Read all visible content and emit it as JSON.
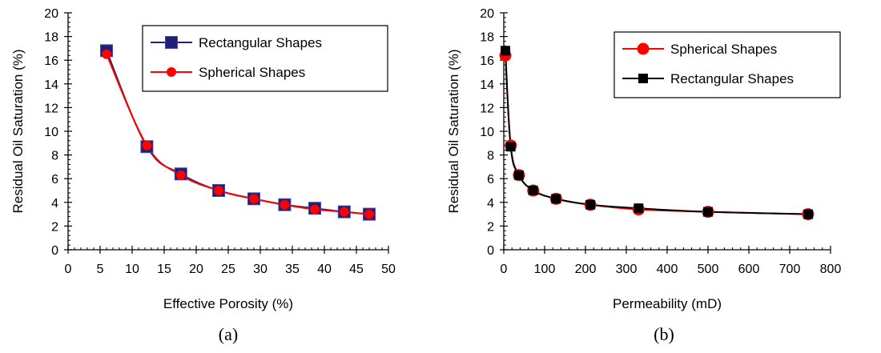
{
  "chart_data": [
    {
      "type": "line",
      "xlabel": "Effective Porosity (%)",
      "ylabel": "Residual Oil Saturation (%)",
      "xlim": [
        0,
        50
      ],
      "ylim": [
        0,
        20
      ],
      "xticks": [
        0,
        5,
        10,
        15,
        20,
        25,
        30,
        35,
        40,
        45,
        50
      ],
      "yticks": [
        0,
        2,
        4,
        6,
        8,
        10,
        12,
        14,
        16,
        18,
        20
      ],
      "grid": false,
      "legend_position": "top-right",
      "caption": "(a)",
      "series": [
        {
          "name": "Rectangular Shapes",
          "marker": "square",
          "color": "#1f1f7a",
          "line_color": "#1f1f7a",
          "x": [
            6.0,
            12.3,
            17.6,
            23.5,
            29.0,
            33.8,
            38.5,
            43.1,
            47.0
          ],
          "y": [
            16.8,
            8.7,
            6.4,
            5.0,
            4.3,
            3.8,
            3.5,
            3.2,
            3.0
          ]
        },
        {
          "name": "Spherical Shapes",
          "marker": "circle",
          "color": "#ff0000",
          "line_color": "#ff0000",
          "x": [
            6.0,
            12.3,
            17.6,
            23.5,
            29.0,
            33.8,
            38.5,
            43.1,
            47.0
          ],
          "y": [
            16.5,
            8.8,
            6.3,
            5.0,
            4.3,
            3.8,
            3.4,
            3.2,
            3.0
          ]
        }
      ]
    },
    {
      "type": "line",
      "xlabel": "Permeability (mD)",
      "ylabel": "Residual Oil Saturation (%)",
      "xlim": [
        0,
        800
      ],
      "ylim": [
        0,
        20
      ],
      "xticks": [
        0,
        100,
        200,
        300,
        400,
        500,
        600,
        700,
        800
      ],
      "yticks": [
        0,
        2,
        4,
        6,
        8,
        10,
        12,
        14,
        16,
        18,
        20
      ],
      "grid": false,
      "legend_position": "top-right",
      "caption": "(b)",
      "series": [
        {
          "name": "Spherical Shapes",
          "marker": "circle",
          "color": "#ff0000",
          "line_color": "#ff0000",
          "x": [
            4,
            17,
            37,
            72,
            128,
            212,
            330,
            500,
            745
          ],
          "y": [
            16.4,
            8.8,
            6.3,
            5.0,
            4.3,
            3.8,
            3.4,
            3.2,
            3.0
          ]
        },
        {
          "name": "Rectangular Shapes",
          "marker": "square",
          "color": "#000000",
          "line_color": "#000000",
          "x": [
            4,
            17,
            37,
            72,
            128,
            212,
            330,
            500,
            745
          ],
          "y": [
            16.8,
            8.7,
            6.3,
            5.0,
            4.3,
            3.8,
            3.5,
            3.2,
            3.0
          ]
        }
      ]
    }
  ]
}
